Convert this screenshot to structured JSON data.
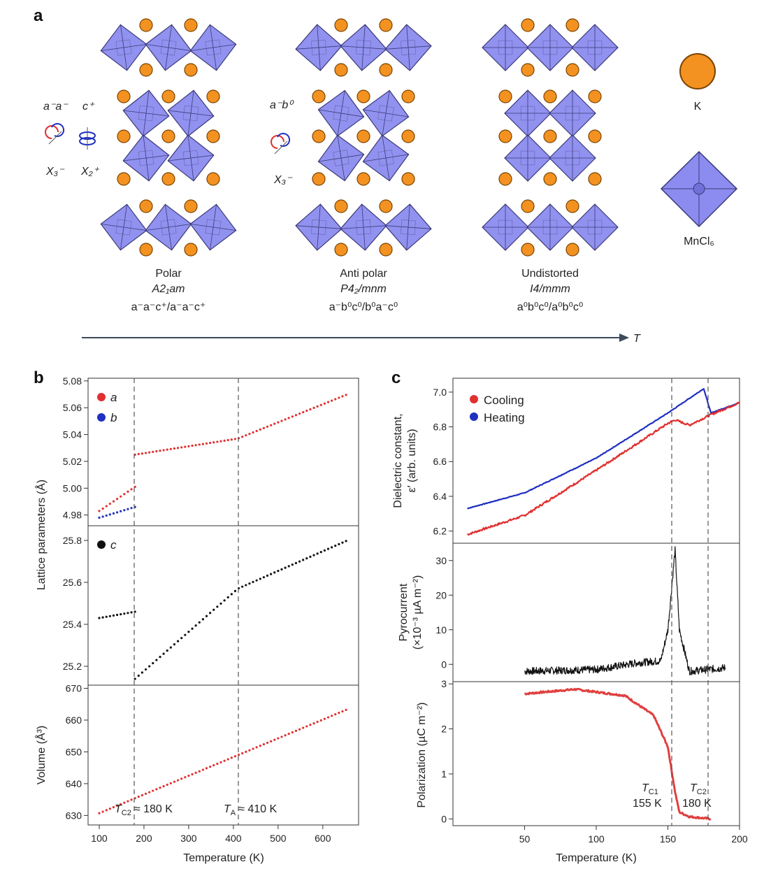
{
  "panel_a": {
    "letter": "a",
    "phases": [
      {
        "name": "Polar",
        "space_group": "A2₁am",
        "tilt": "a⁻a⁻c⁺/a⁻a⁻c⁺"
      },
      {
        "name": "Anti polar",
        "space_group": "P4₂/mnm",
        "tilt": "a⁻b⁰c⁰/b⁰a⁻c⁰"
      },
      {
        "name": "Undistorted",
        "space_group": "I4/mmm",
        "tilt": "a⁰b⁰c⁰/a⁰b⁰c⁰"
      }
    ],
    "glazer_left": {
      "tilt1": "a⁻a⁻",
      "tilt2": "c⁺",
      "mode1": "X₃⁻",
      "mode2": "X₂⁺"
    },
    "glazer_mid": {
      "tilt1": "a⁻b⁰",
      "mode1": "X₃⁻"
    },
    "legend_k": "K",
    "legend_oct": "MnCl₆",
    "temp_arrow_label": "T",
    "colors": {
      "octahedron": "#8888ee",
      "octahedron_edge": "#3a3a7a",
      "k_atom": "#f39221",
      "k_edge": "#7a4300"
    }
  },
  "panel_b": {
    "letter": "b",
    "xlabel": "Temperature (K)",
    "ylabel_top": "Lattice parameters (Å)",
    "ylabel_bottom": "Volume (Å³)",
    "legend_a": "a",
    "legend_b": "b",
    "legend_c": "c",
    "annot_tc2": "Tₑ₂",
    "annot_tc2_text": "T",
    "annot_tc2_sub": "C2",
    "annot_tc2_val": "≈ 180 K",
    "annot_ta_text": "T",
    "annot_ta_sub": "A",
    "annot_ta_val": "≈ 410 K",
    "x_ticks": [
      "100",
      "200",
      "300",
      "400",
      "500",
      "600"
    ],
    "ab_ticks": [
      "4.98",
      "5.00",
      "5.02",
      "5.04",
      "5.06",
      "5.08"
    ],
    "c_ticks": [
      "25.2",
      "25.4",
      "25.6",
      "25.8"
    ],
    "v_ticks": [
      "630",
      "640",
      "650",
      "660",
      "670"
    ]
  },
  "panel_c": {
    "letter": "c",
    "xlabel": "Temperature (K)",
    "ylabel_diel_1": "Dielectric constant,",
    "ylabel_diel_2": "ε′ (arb. units)",
    "ylabel_pyro_1": "Pyrocurrent",
    "ylabel_pyro_2": "(×10⁻³ µA m⁻²)",
    "ylabel_pol": "Polarization (µC m⁻²)",
    "legend_cooling": "Cooling",
    "legend_heating": "Heating",
    "annot_tc1_text": "T",
    "annot_tc1_sub": "C1",
    "annot_tc1_val": "155 K",
    "annot_tc2_text": "T",
    "annot_tc2_sub": "C2",
    "annot_tc2_val": "180 K",
    "x_ticks": [
      "50",
      "100",
      "150",
      "200"
    ],
    "diel_ticks": [
      "6.2",
      "6.4",
      "6.6",
      "6.8",
      "7.0"
    ],
    "pyro_ticks": [
      "0",
      "10",
      "20",
      "30"
    ],
    "pol_ticks": [
      "0",
      "1",
      "2",
      "3"
    ],
    "colors": {
      "cooling": "#e03030",
      "heating": "#2030c0",
      "pyro": "#111111",
      "pol": "#e04040"
    }
  },
  "chart_data": [
    {
      "type": "scatter",
      "title": "",
      "xlabel": "Temperature (K)",
      "ylabel": "Lattice parameters (Å)",
      "xlim": [
        75,
        680
      ],
      "ylim": [
        4.972,
        5.082
      ],
      "series": [
        {
          "name": "a",
          "color": "#e03030",
          "x": [
            100,
            180,
            180,
            410,
            655
          ],
          "y": [
            4.983,
            5.001,
            5.025,
            5.037,
            5.07
          ]
        },
        {
          "name": "b",
          "color": "#2030c0",
          "x": [
            100,
            180
          ],
          "y": [
            4.978,
            4.986
          ]
        }
      ]
    },
    {
      "type": "scatter",
      "xlabel": "Temperature (K)",
      "ylabel": "Lattice parameters (Å)",
      "xlim": [
        75,
        680
      ],
      "ylim": [
        25.11,
        25.87
      ],
      "series": [
        {
          "name": "c",
          "color": "#111111",
          "x": [
            100,
            180,
            180,
            410,
            655
          ],
          "y": [
            25.43,
            25.46,
            25.14,
            25.57,
            25.8
          ]
        }
      ]
    },
    {
      "type": "scatter",
      "xlabel": "Temperature (K)",
      "ylabel": "Volume (Å³)",
      "xlim": [
        75,
        680
      ],
      "ylim": [
        627,
        671
      ],
      "series": [
        {
          "color": "#e03030",
          "x": [
            100,
            655
          ],
          "y": [
            630.7,
            663.4
          ]
        }
      ]
    },
    {
      "type": "line",
      "xlabel": "Temperature (K)",
      "ylabel": "Dielectric constant, ε′ (arb. units)",
      "xlim": [
        0,
        200
      ],
      "ylim": [
        6.13,
        7.08
      ],
      "series": [
        {
          "name": "Heating",
          "color": "#2030c0",
          "x": [
            10,
            50,
            100,
            150,
            175,
            180,
            200
          ],
          "y": [
            6.33,
            6.42,
            6.62,
            6.88,
            7.02,
            6.88,
            6.94
          ]
        },
        {
          "name": "Cooling",
          "color": "#e03030",
          "x": [
            10,
            50,
            100,
            150,
            155,
            165,
            180,
            200
          ],
          "y": [
            6.18,
            6.29,
            6.55,
            6.82,
            6.84,
            6.81,
            6.87,
            6.94
          ]
        }
      ]
    },
    {
      "type": "line",
      "xlabel": "Temperature (K)",
      "ylabel": "Pyrocurrent (×10⁻³ µA m⁻²)",
      "xlim": [
        0,
        200
      ],
      "ylim": [
        -5,
        35
      ],
      "series": [
        {
          "color": "#111111",
          "x": [
            50,
            100,
            130,
            145,
            150,
            155,
            158,
            165,
            190
          ],
          "y": [
            -2,
            -1.5,
            0.5,
            1,
            10,
            33,
            10,
            -2,
            -1
          ]
        }
      ]
    },
    {
      "type": "line",
      "xlabel": "Temperature (K)",
      "ylabel": "Polarization (µC m⁻²)",
      "xlim": [
        0,
        200
      ],
      "ylim": [
        -0.15,
        3.05
      ],
      "series": [
        {
          "color": "#e04040",
          "x": [
            50,
            85,
            120,
            140,
            150,
            155,
            158,
            165,
            180
          ],
          "y": [
            2.78,
            2.88,
            2.74,
            2.3,
            1.6,
            0.6,
            0.15,
            0.05,
            0.0
          ]
        }
      ]
    }
  ]
}
